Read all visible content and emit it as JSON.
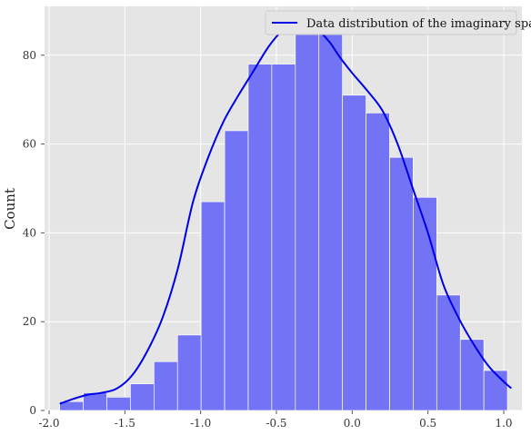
{
  "chart_data": {
    "type": "histogram",
    "xlabel": "",
    "ylabel": "Count",
    "xlim": [
      -2.03,
      1.12
    ],
    "ylim": [
      0,
      91
    ],
    "xticks": [
      -2.0,
      -1.5,
      -1.0,
      -0.5,
      0.0,
      0.5,
      1.0
    ],
    "xtick_labels": [
      "-2.0",
      "-1.5",
      "-1.0",
      "-0.5",
      "0.0",
      "0.5",
      "1.0"
    ],
    "yticks": [
      0,
      20,
      40,
      60,
      80
    ],
    "ytick_labels": [
      "0",
      "20",
      "40",
      "60",
      "80"
    ],
    "grid": true,
    "legend": {
      "position": "top-right",
      "entries": [
        "Data distribution of the imaginary space"
      ]
    },
    "colors": {
      "bars": "#7373f5",
      "kde": "#0000e6",
      "background": "#e5e5e5",
      "grid": "#ffffff"
    },
    "bins": {
      "edges": [
        -1.93,
        -1.7745,
        -1.619,
        -1.4635,
        -1.308,
        -1.1525,
        -0.997,
        -0.8415,
        -0.686,
        -0.5305,
        -0.375,
        -0.2195,
        -0.064,
        0.0915,
        0.247,
        0.4025,
        0.558,
        0.7135,
        0.869,
        1.0245
      ],
      "counts": [
        2,
        4,
        3,
        6,
        11,
        17,
        47,
        63,
        78,
        78,
        90,
        89,
        71,
        67,
        57,
        48,
        26,
        16,
        9
      ]
    },
    "kde": {
      "name": "Data distribution of the imaginary space",
      "x": [
        -1.93,
        -1.85,
        -1.75,
        -1.65,
        -1.55,
        -1.45,
        -1.35,
        -1.25,
        -1.15,
        -1.05,
        -0.95,
        -0.85,
        -0.75,
        -0.65,
        -0.55,
        -0.45,
        -0.37,
        -0.3,
        -0.22,
        -0.15,
        -0.08,
        0.0,
        0.1,
        0.2,
        0.3,
        0.4,
        0.5,
        0.6,
        0.7,
        0.8,
        0.9,
        1.0,
        1.05
      ],
      "y": [
        1.5,
        2.5,
        3.5,
        4,
        5,
        8,
        13.5,
        21,
        32,
        47,
        57,
        65,
        71,
        76.5,
        82,
        86,
        88,
        87.5,
        85.5,
        83,
        79.5,
        76,
        72,
        67.5,
        60,
        50,
        40,
        28.5,
        21,
        15,
        10,
        6.5,
        5
      ]
    }
  }
}
